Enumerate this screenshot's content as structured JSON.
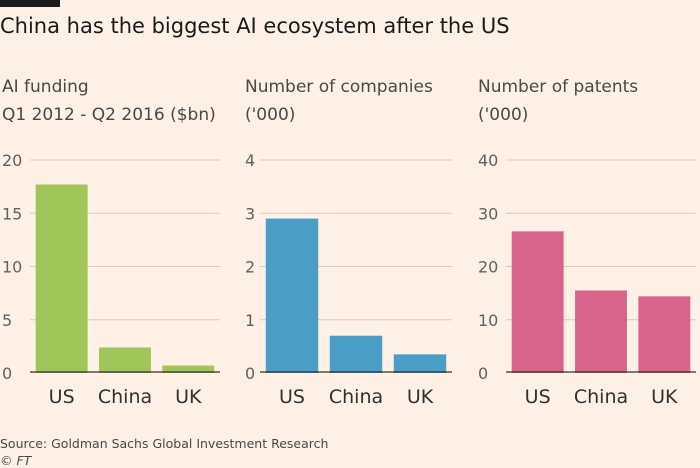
{
  "title": "China has the biggest AI ecosystem after the US",
  "source": "Source: Goldman Sachs Global Investment Research",
  "credit": "© FT",
  "chart_data": [
    {
      "type": "bar",
      "title_lines": [
        "AI funding",
        "Q1 2012 - Q2 2016 ($bn)"
      ],
      "categories": [
        "US",
        "China",
        "UK"
      ],
      "values": [
        17.7,
        2.4,
        0.7
      ],
      "ylim": [
        0,
        20
      ],
      "yticks": [
        0,
        5,
        10,
        15,
        20
      ],
      "color": "#a0c65a",
      "grid": true
    },
    {
      "type": "bar",
      "title_lines": [
        "Number of companies",
        "('000)"
      ],
      "categories": [
        "US",
        "China",
        "UK"
      ],
      "values": [
        2.9,
        0.7,
        0.35
      ],
      "ylim": [
        0,
        4
      ],
      "yticks": [
        0,
        1,
        2,
        3,
        4
      ],
      "color": "#4b9dc7",
      "grid": true
    },
    {
      "type": "bar",
      "title_lines": [
        "Number of patents",
        "('000)"
      ],
      "categories": [
        "US",
        "China",
        "UK"
      ],
      "values": [
        26.6,
        15.5,
        14.4
      ],
      "ylim": [
        0,
        40
      ],
      "yticks": [
        0,
        10,
        20,
        30,
        40
      ],
      "color": "#d9638a",
      "grid": true
    }
  ]
}
